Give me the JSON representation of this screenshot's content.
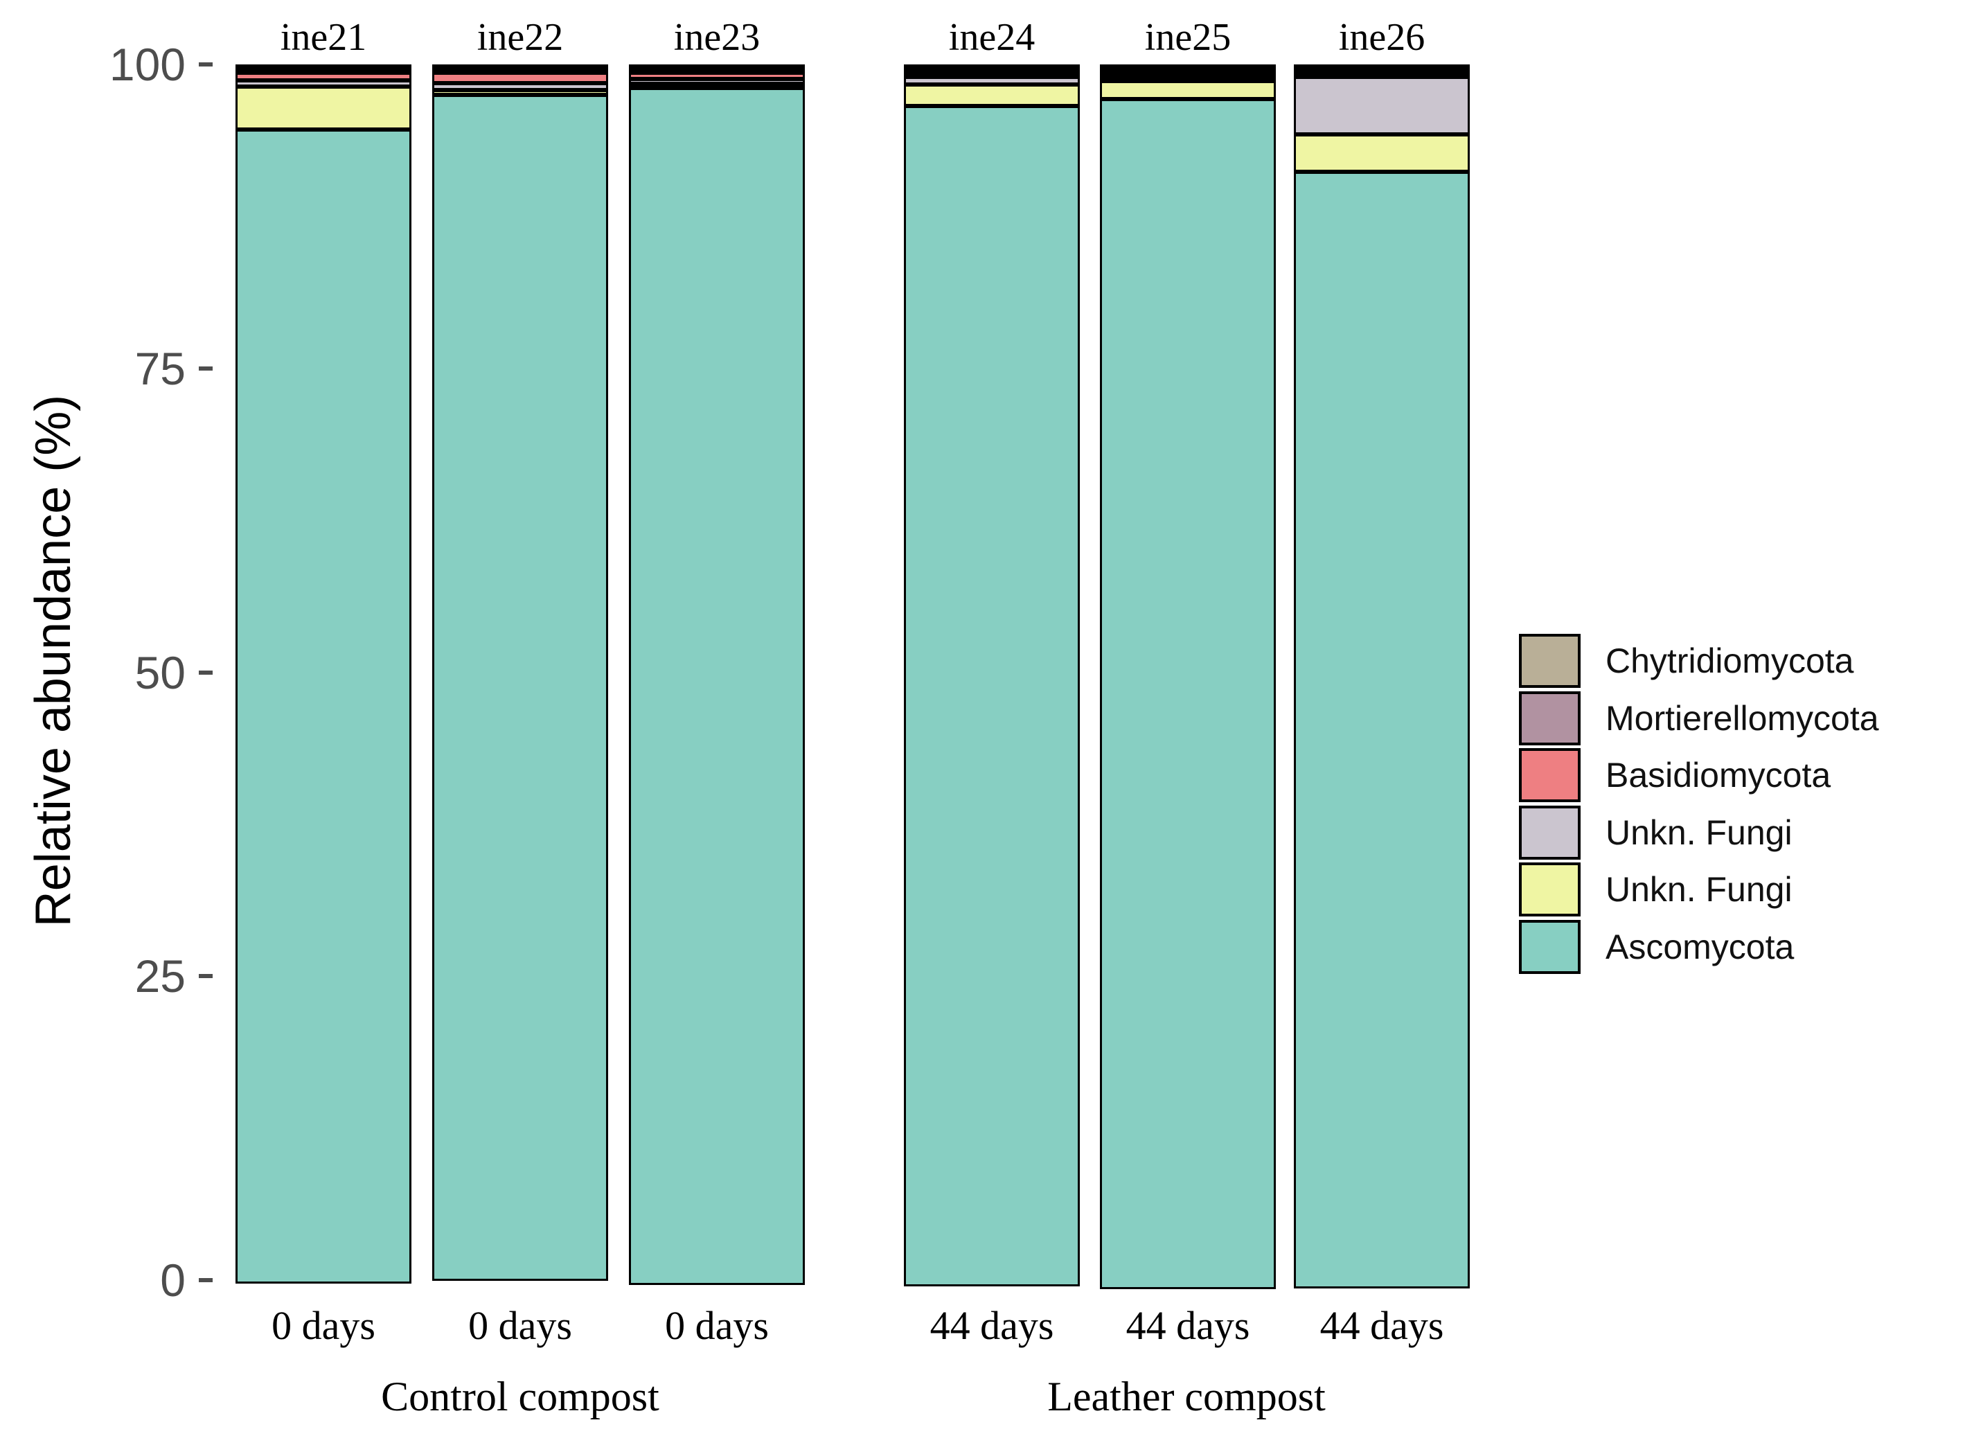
{
  "chart_data": {
    "type": "bar",
    "stacked": true,
    "title": "",
    "ylabel": "Relative abundance (%)",
    "xlabel": "",
    "ylim": [
      0,
      100
    ],
    "yticks": [
      100,
      75,
      50,
      25,
      0
    ],
    "grid": "off",
    "legend_position": "right",
    "bar_outline_color": "#000000",
    "palette": {
      "Chytridiomycota": "#b9af97",
      "Mortierellomycota": "#b192a1",
      "Basidiomycota": "#ee7f82",
      "Unkn. Fungi (lavender)": "#cbc5cf",
      "Unkn. Fungi (yellow)": "#eff5a3",
      "Ascomycota": "#87cfc2"
    },
    "legend": [
      {
        "label": "Chytridiomycota",
        "taxon": "Chytridiomycota",
        "color": "#b9af97"
      },
      {
        "label": "Mortierellomycota",
        "taxon": "Mortierellomycota",
        "color": "#b192a1"
      },
      {
        "label": "Basidiomycota",
        "taxon": "Basidiomycota",
        "color": "#ee7f82"
      },
      {
        "label": "Unkn. Fungi",
        "taxon": "Unkn. Fungi (lavender)",
        "color": "#cbc5cf"
      },
      {
        "label": "Unkn. Fungi",
        "taxon": "Unkn. Fungi (yellow)",
        "color": "#eff5a3"
      },
      {
        "label": "Ascomycota",
        "taxon": "Ascomycota",
        "color": "#87cfc2"
      }
    ],
    "stack_order_bottom_to_top": [
      "Ascomycota",
      "Unkn. Fungi (yellow)",
      "Unkn. Fungi (lavender)",
      "Basidiomycota",
      "Mortierellomycota",
      "Chytridiomycota"
    ],
    "groups": [
      {
        "label": "Control compost",
        "bar_indexes": [
          0,
          1,
          2
        ]
      },
      {
        "label": "Leather compost",
        "bar_indexes": [
          3,
          4,
          5
        ]
      }
    ],
    "bars": [
      {
        "sample": "ine21",
        "x_label": "0 days",
        "group": "Control compost",
        "values": {
          "Ascomycota": 94.95,
          "Unkn. Fungi (yellow)": 3.5,
          "Unkn. Fungi (lavender)": 0.55,
          "Basidiomycota": 0.6,
          "Mortierellomycota": 0.2,
          "Chytridiomycota": 0.2
        }
      },
      {
        "sample": "ine22",
        "x_label": "0 days",
        "group": "Control compost",
        "values": {
          "Ascomycota": 97.6,
          "Unkn. Fungi (yellow)": 0.35,
          "Unkn. Fungi (lavender)": 0.6,
          "Basidiomycota": 0.85,
          "Mortierellomycota": 0.3,
          "Chytridiomycota": 0.3
        }
      },
      {
        "sample": "ine23",
        "x_label": "0 days",
        "group": "Control compost",
        "values": {
          "Ascomycota": 98.5,
          "Unkn. Fungi (yellow)": 0.2,
          "Unkn. Fungi (lavender)": 0.4,
          "Basidiomycota": 0.5,
          "Mortierellomycota": 0.2,
          "Chytridiomycota": 0.2
        }
      },
      {
        "sample": "ine24",
        "x_label": "44 days",
        "group": "Leather compost",
        "values": {
          "Ascomycota": 97.1,
          "Unkn. Fungi (yellow)": 1.75,
          "Unkn. Fungi (lavender)": 0.65,
          "Basidiomycota": 0.2,
          "Mortierellomycota": 0.15,
          "Chytridiomycota": 0.15
        }
      },
      {
        "sample": "ine25",
        "x_label": "44 days",
        "group": "Leather compost",
        "values": {
          "Ascomycota": 97.9,
          "Unkn. Fungi (yellow)": 1.5,
          "Unkn. Fungi (lavender)": 0.25,
          "Basidiomycota": 0.15,
          "Mortierellomycota": 0.1,
          "Chytridiomycota": 0.1
        }
      },
      {
        "sample": "ine26",
        "x_label": "44 days",
        "group": "Leather compost",
        "values": {
          "Ascomycota": 91.85,
          "Unkn. Fungi (yellow)": 3.05,
          "Unkn. Fungi (lavender)": 4.75,
          "Basidiomycota": 0.15,
          "Mortierellomycota": 0.1,
          "Chytridiomycota": 0.1
        }
      }
    ]
  }
}
